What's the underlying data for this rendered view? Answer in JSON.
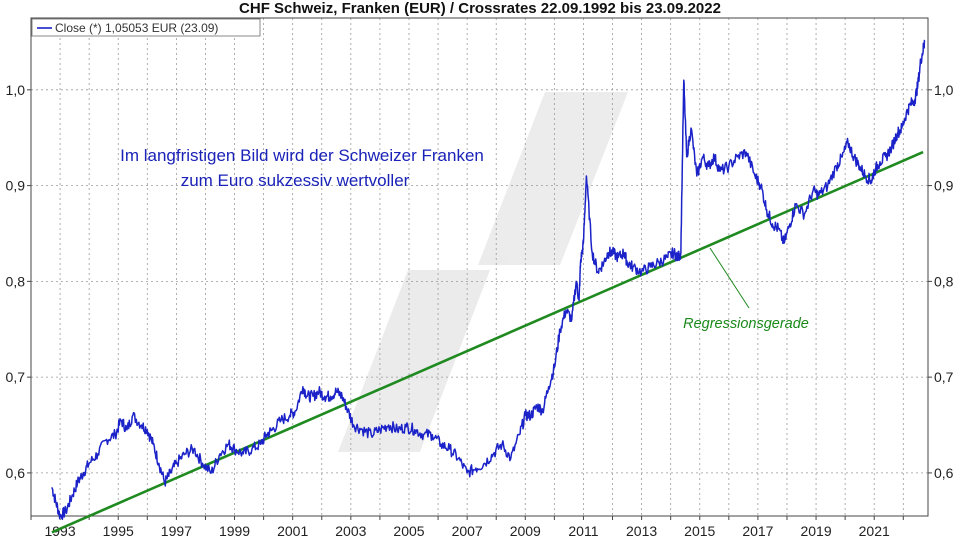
{
  "chart_data": {
    "type": "line",
    "title": "CHF Schweiz, Franken (EUR) / Crossrates 22.09.1992 bis 23.09.2022",
    "legend": {
      "label": "Close (*) 1,05053 EUR (23.09)",
      "placement": "top-left"
    },
    "xlabel": "",
    "ylabel": "",
    "xlim": [
      1992.0,
      2022.85
    ],
    "ylim": [
      0.555,
      1.075
    ],
    "x_tick_labels": [
      "1993",
      "1995",
      "1997",
      "1999",
      "2001",
      "2003",
      "2005",
      "2007",
      "2009",
      "2011",
      "2013",
      "2015",
      "2017",
      "2019",
      "2021"
    ],
    "x_tick_values": [
      1993,
      1995,
      1997,
      1999,
      2001,
      2003,
      2005,
      2007,
      2009,
      2011,
      2013,
      2015,
      2017,
      2019,
      2021
    ],
    "y_tick_labels": [
      "0,6",
      "0,7",
      "0,8",
      "0,9",
      "1,0"
    ],
    "y_tick_values": [
      0.6,
      0.7,
      0.8,
      0.9,
      1.0
    ],
    "grid": true,
    "series": [
      {
        "name": "Close",
        "color": "#1a22c8",
        "x": [
          1992.72,
          1992.85,
          1993.0,
          1993.2,
          1993.4,
          1993.6,
          1993.8,
          1994.0,
          1994.3,
          1994.6,
          1994.9,
          1995.1,
          1995.3,
          1995.5,
          1995.8,
          1996.0,
          1996.2,
          1996.4,
          1996.6,
          1996.8,
          1997.0,
          1997.3,
          1997.6,
          1997.9,
          1998.2,
          1998.5,
          1998.8,
          1999.0,
          1999.3,
          1999.6,
          1999.9,
          2000.1,
          2000.3,
          2000.6,
          2000.9,
          2001.1,
          2001.35,
          2001.5,
          2001.7,
          2001.9,
          2002.1,
          2002.3,
          2002.5,
          2002.7,
          2002.9,
          2003.1,
          2003.4,
          2003.7,
          2004.0,
          2004.3,
          2004.6,
          2004.9,
          2005.2,
          2005.5,
          2005.8,
          2006.1,
          2006.4,
          2006.7,
          2007.0,
          2007.3,
          2007.6,
          2007.9,
          2008.2,
          2008.5,
          2008.8,
          2009.0,
          2009.2,
          2009.4,
          2009.6,
          2009.8,
          2010.0,
          2010.2,
          2010.4,
          2010.6,
          2010.75,
          2010.85,
          2010.9,
          2011.0,
          2011.1,
          2011.3,
          2011.5,
          2011.7,
          2011.85,
          2012.0,
          2012.2,
          2012.4,
          2012.5,
          2012.7,
          2013.0,
          2013.3,
          2013.6,
          2013.9,
          2014.1,
          2014.25,
          2014.35,
          2014.45,
          2014.55,
          2014.7,
          2014.9,
          2015.1,
          2015.3,
          2015.5,
          2015.7,
          2016.0,
          2016.3,
          2016.6,
          2016.9,
          2017.1,
          2017.3,
          2017.5,
          2017.7,
          2017.9,
          2018.1,
          2018.3,
          2018.6,
          2018.9,
          2019.1,
          2019.4,
          2019.7,
          2019.9,
          2020.1,
          2020.3,
          2020.5,
          2020.7,
          2020.9,
          2021.0,
          2021.2,
          2021.4,
          2021.6,
          2021.8,
          2021.95,
          2022.1,
          2022.25,
          2022.4,
          2022.5,
          2022.6,
          2022.7,
          2022.73
        ],
        "values": [
          0.585,
          0.57,
          0.555,
          0.56,
          0.575,
          0.59,
          0.6,
          0.61,
          0.62,
          0.635,
          0.64,
          0.655,
          0.645,
          0.66,
          0.65,
          0.645,
          0.63,
          0.61,
          0.59,
          0.6,
          0.61,
          0.62,
          0.625,
          0.61,
          0.6,
          0.62,
          0.63,
          0.625,
          0.62,
          0.625,
          0.63,
          0.64,
          0.645,
          0.655,
          0.66,
          0.665,
          0.69,
          0.68,
          0.68,
          0.685,
          0.68,
          0.68,
          0.685,
          0.68,
          0.665,
          0.65,
          0.645,
          0.64,
          0.645,
          0.65,
          0.645,
          0.648,
          0.645,
          0.64,
          0.64,
          0.63,
          0.625,
          0.615,
          0.6,
          0.605,
          0.61,
          0.62,
          0.63,
          0.615,
          0.64,
          0.66,
          0.66,
          0.67,
          0.665,
          0.69,
          0.71,
          0.75,
          0.77,
          0.76,
          0.8,
          0.78,
          0.82,
          0.84,
          0.91,
          0.83,
          0.81,
          0.82,
          0.83,
          0.83,
          0.825,
          0.83,
          0.82,
          0.815,
          0.81,
          0.815,
          0.82,
          0.825,
          0.83,
          0.825,
          0.83,
          1.01,
          0.93,
          0.96,
          0.91,
          0.93,
          0.92,
          0.93,
          0.915,
          0.92,
          0.93,
          0.935,
          0.91,
          0.9,
          0.875,
          0.86,
          0.855,
          0.84,
          0.86,
          0.88,
          0.87,
          0.895,
          0.89,
          0.9,
          0.92,
          0.93,
          0.945,
          0.93,
          0.92,
          0.91,
          0.905,
          0.915,
          0.925,
          0.93,
          0.94,
          0.955,
          0.96,
          0.975,
          0.985,
          0.99,
          1.005,
          1.03,
          1.045,
          1.05
        ],
        "trendline": {
          "name": "Regressionsgerade",
          "color": "#1f8a1f",
          "x": [
            1992.72,
            2022.68
          ],
          "values": [
            0.538,
            0.935
          ]
        }
      }
    ],
    "annotations": [
      "Im langfristigen Bild wird der Schweizer Franken",
      "zum Euro sukzessiv wertvoller",
      "Regressionsgerade"
    ]
  }
}
